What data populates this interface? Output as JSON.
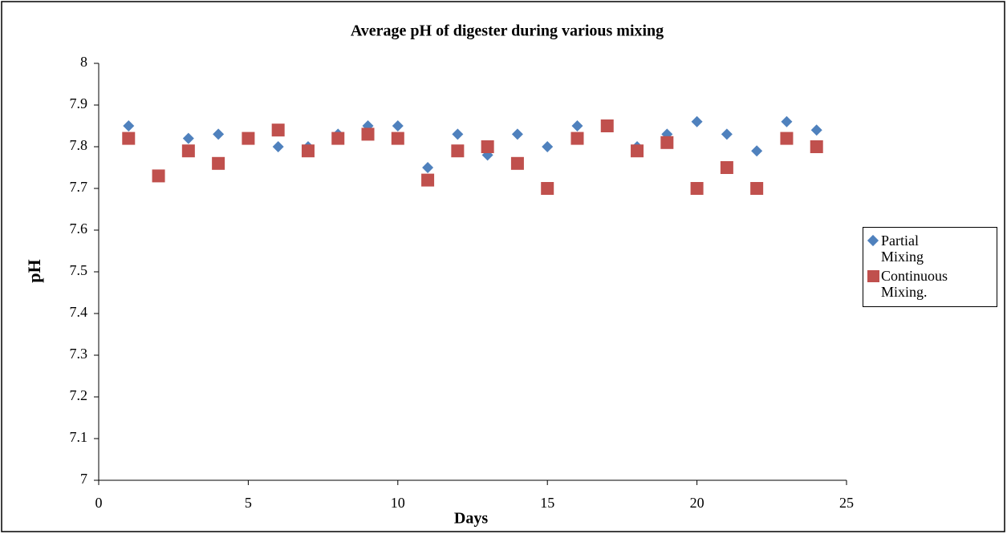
{
  "chart_data": {
    "type": "scatter",
    "title": "Average pH  of digester during various mixing",
    "x_label": "Days",
    "y_label": "pH",
    "xlim": [
      0,
      25
    ],
    "xticks": [
      0,
      5,
      10,
      15,
      20,
      25
    ],
    "ylim": [
      7,
      8
    ],
    "yticks": [
      7,
      7.1,
      7.2,
      7.3,
      7.4,
      7.5,
      7.6,
      7.7,
      7.8,
      7.9,
      8
    ],
    "grid": false,
    "legend": "right",
    "series": [
      {
        "name": "Partial Mixing",
        "color": "#4f81bd",
        "marker": "diamond",
        "x": [
          1,
          3,
          4,
          6,
          7,
          8,
          9,
          10,
          11,
          12,
          13,
          14,
          15,
          16,
          18,
          19,
          20,
          21,
          22,
          23,
          24
        ],
        "values": [
          7.85,
          7.82,
          7.83,
          7.8,
          7.8,
          7.83,
          7.85,
          7.85,
          7.75,
          7.83,
          7.78,
          7.83,
          7.8,
          7.85,
          7.8,
          7.83,
          7.86,
          7.83,
          7.79,
          7.86,
          7.84
        ]
      },
      {
        "name": "Continuous Mixing.",
        "color": "#c0504d",
        "marker": "square",
        "x": [
          1,
          2,
          3,
          4,
          5,
          6,
          7,
          8,
          9,
          10,
          11,
          12,
          13,
          14,
          15,
          16,
          17,
          18,
          19,
          20,
          21,
          22,
          23,
          24
        ],
        "values": [
          7.82,
          7.73,
          7.79,
          7.76,
          7.82,
          7.84,
          7.79,
          7.82,
          7.83,
          7.82,
          7.72,
          7.79,
          7.8,
          7.76,
          7.7,
          7.82,
          7.85,
          7.79,
          7.81,
          7.7,
          7.75,
          7.7,
          7.82,
          7.8
        ]
      }
    ]
  }
}
